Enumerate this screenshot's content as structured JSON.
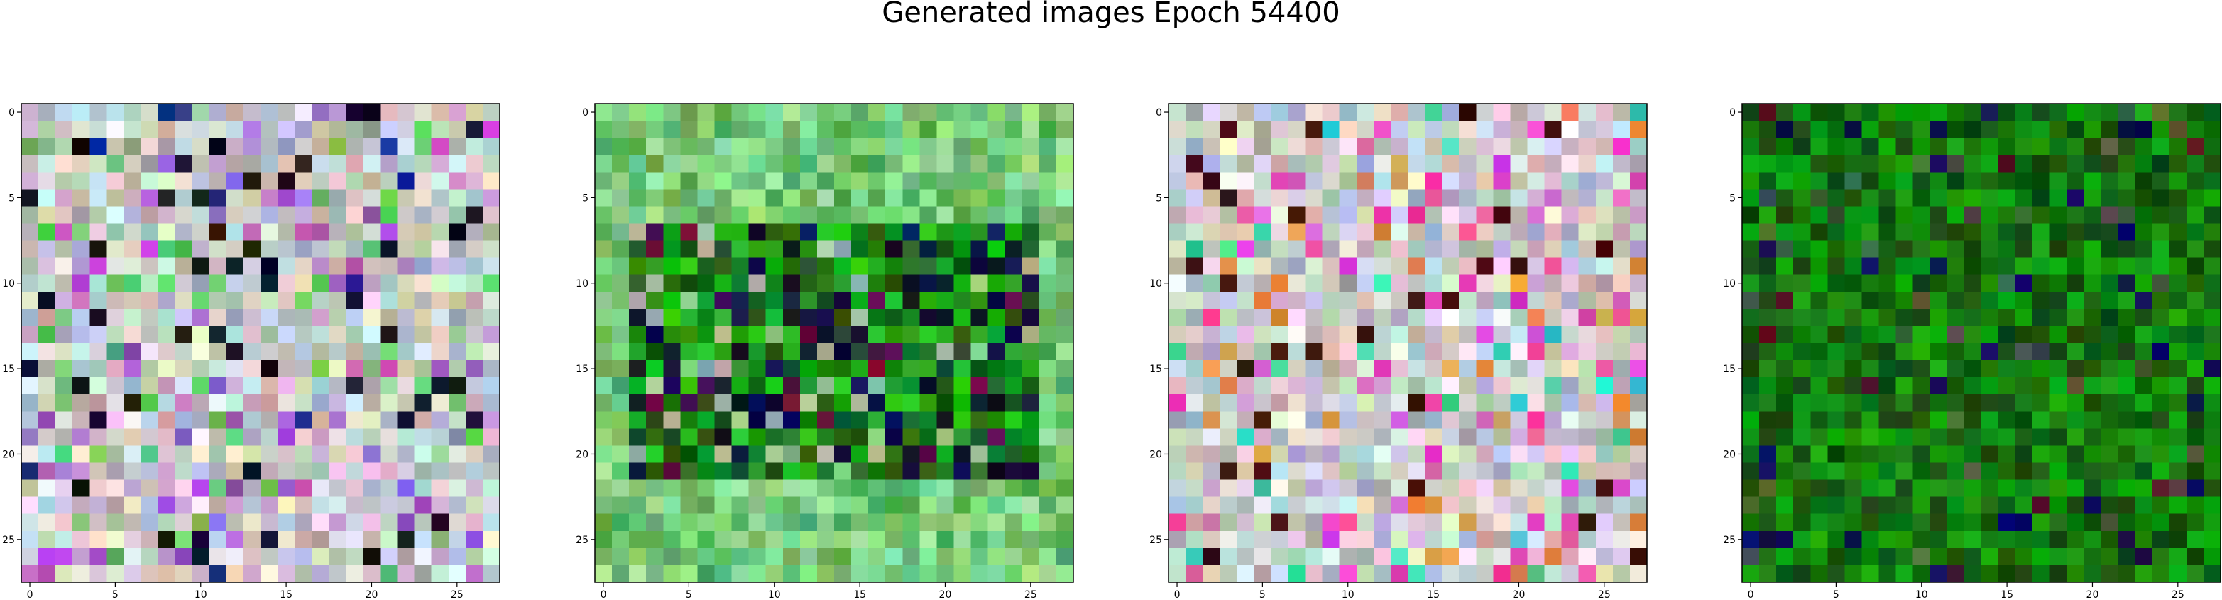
{
  "figure": {
    "title": "Generated images Epoch 54400"
  },
  "chart_data": [
    {
      "type": "heatmap",
      "title": "",
      "rows": 28,
      "cols": 28,
      "xticks": [
        0,
        5,
        10,
        15,
        20,
        25
      ],
      "yticks": [
        0,
        5,
        10,
        15,
        20,
        25
      ],
      "xlim": [
        -0.5,
        27.5
      ],
      "ylim": [
        27.5,
        -0.5
      ],
      "grid": false,
      "dominant_colors": [
        "#c8c0c8",
        "#b4a8c8",
        "#d0d8b8",
        "#8a5ab4",
        "#1a1a1a",
        "#1a2a8a"
      ],
      "description": "colorful pastel noise with scattered dark and saturated pixels"
    },
    {
      "type": "heatmap",
      "title": "",
      "rows": 28,
      "cols": 28,
      "xticks": [
        0,
        5,
        10,
        15,
        20,
        25
      ],
      "yticks": [
        0,
        5,
        10,
        15,
        20,
        25
      ],
      "xlim": [
        -0.5,
        27.5
      ],
      "ylim": [
        27.5,
        -0.5
      ],
      "grid": false,
      "dominant_colors": [
        "#a8c8a8",
        "#4aa84a",
        "#0a5a1a",
        "#0a1030",
        "#8a1a3a",
        "#c8d8c0"
      ],
      "description": "light green border with dark green, navy and purple center region"
    },
    {
      "type": "heatmap",
      "title": "",
      "rows": 28,
      "cols": 28,
      "xticks": [
        0,
        5,
        10,
        15,
        20,
        25
      ],
      "yticks": [
        0,
        5,
        10,
        15,
        20,
        25
      ],
      "xlim": [
        -0.5,
        27.5
      ],
      "ylim": [
        27.5,
        -0.5
      ],
      "grid": false,
      "dominant_colors": [
        "#d0c8c8",
        "#e0d0d8",
        "#c8b8a8",
        "#d050a8",
        "#20c890",
        "#3a0a1a"
      ],
      "description": "pale pastel noise with magenta, teal and dark red accents"
    },
    {
      "type": "heatmap",
      "title": "",
      "rows": 28,
      "cols": 28,
      "xticks": [
        0,
        5,
        10,
        15,
        20,
        25
      ],
      "yticks": [
        0,
        5,
        10,
        15,
        20,
        25
      ],
      "xlim": [
        -0.5,
        27.5
      ],
      "ylim": [
        27.5,
        -0.5
      ],
      "grid": false,
      "dominant_colors": [
        "#0a7a0a",
        "#0a5a0a",
        "#1aa01a",
        "#2a4a3a",
        "#0a1a5a",
        "#3a0a1a"
      ],
      "description": "mostly saturated green with a few dark navy and maroon pixels near center"
    }
  ]
}
